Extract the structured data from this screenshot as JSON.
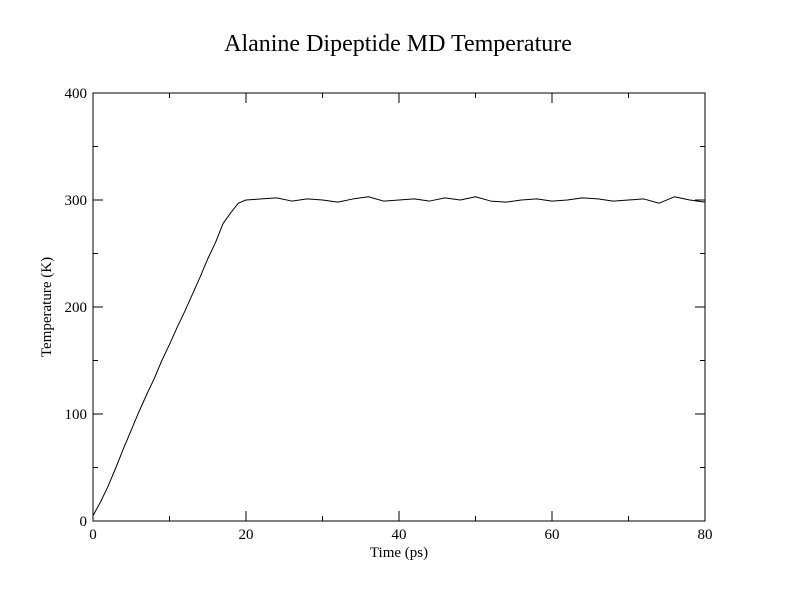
{
  "chart_data": {
    "type": "line",
    "title": "Alanine Dipeptide MD Temperature",
    "xlabel": "Time (ps)",
    "ylabel": "Temperature (K)",
    "xlim": [
      0,
      80
    ],
    "ylim": [
      0,
      400
    ],
    "x_ticks": [
      "0",
      "20",
      "40",
      "60",
      "80"
    ],
    "y_ticks": [
      "0",
      "100",
      "200",
      "300",
      "400"
    ],
    "grid": false,
    "legend": "none",
    "colors": {
      "line": "#000000",
      "axes": "#000000"
    },
    "series": [
      {
        "x": [
          0,
          1,
          2,
          3,
          4,
          5,
          6,
          7,
          8,
          9,
          10,
          11,
          12,
          13,
          14,
          15,
          16,
          17,
          18,
          19,
          20,
          22,
          24,
          26,
          28,
          30,
          32,
          34,
          36,
          38,
          40,
          42,
          44,
          46,
          48,
          50,
          52,
          54,
          56,
          58,
          60,
          62,
          64,
          66,
          68,
          70,
          72,
          74,
          76,
          78,
          80
        ],
        "values": [
          5,
          18,
          33,
          50,
          68,
          85,
          102,
          118,
          133,
          150,
          165,
          181,
          196,
          212,
          228,
          245,
          260,
          278,
          288,
          297,
          300,
          301,
          302,
          299,
          301,
          300,
          298,
          301,
          303,
          299,
          300,
          301,
          299,
          302,
          300,
          303,
          299,
          298,
          300,
          301,
          299,
          300,
          302,
          301,
          299,
          300,
          301,
          297,
          303,
          300,
          298
        ]
      }
    ]
  }
}
